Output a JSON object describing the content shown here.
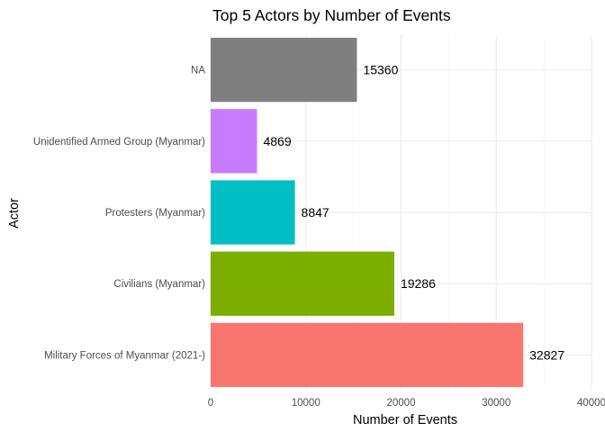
{
  "chart_data": {
    "type": "bar",
    "orientation": "horizontal",
    "title": "Top 5 Actors by Number of Events",
    "xlabel": "Number of Events",
    "ylabel": "Actor",
    "categories": [
      "Military Forces of Myanmar (2021-)",
      "Civilians (Myanmar)",
      "Protesters (Myanmar)",
      "Unidentified Armed Group (Myanmar)",
      "NA"
    ],
    "values": [
      32827,
      19286,
      8847,
      4869,
      15360
    ],
    "colors": [
      "#F8766D",
      "#7CAE00",
      "#00BFC4",
      "#C77CFF",
      "#7F7F7F"
    ],
    "xlim": [
      0,
      40000
    ],
    "xticks": [
      0,
      10000,
      20000,
      30000,
      40000
    ],
    "grid": true,
    "legend": "none"
  }
}
